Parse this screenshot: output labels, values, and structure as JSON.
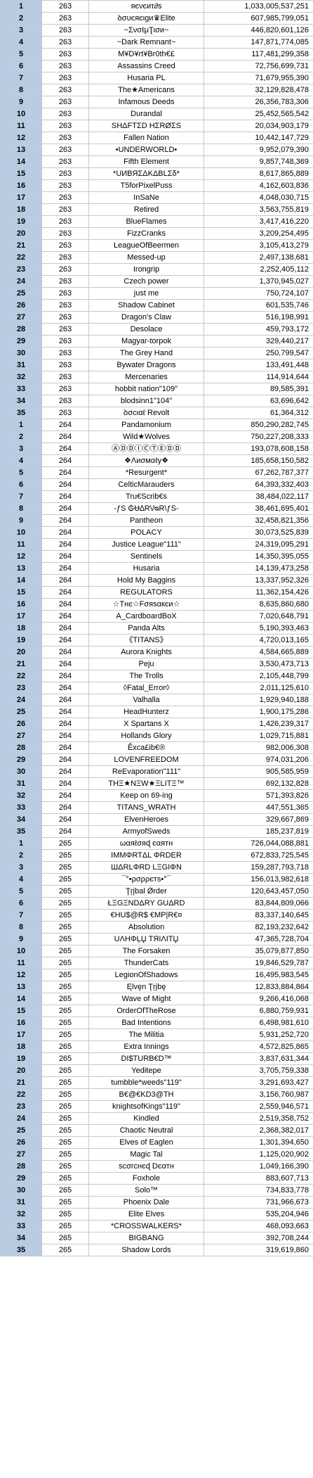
{
  "rows": [
    {
      "rank": "1",
      "server": "263",
      "name": "яєνєиτ∂ѕ",
      "score": "1,033,005,537,251"
    },
    {
      "rank": "2",
      "server": "263",
      "name": "ꝺσυєяєιgи♛Elite",
      "score": "607,985,799,051"
    },
    {
      "rank": "3",
      "server": "263",
      "name": "~ƩνσℓμƮισи~",
      "score": "446,820,601,126"
    },
    {
      "rank": "4",
      "server": "263",
      "name": "~Dark Remnant~",
      "score": "147,871,774,085"
    },
    {
      "rank": "5",
      "server": "263",
      "name": "M¥D¥rt¥Br0th€£",
      "score": "117,481,299,358"
    },
    {
      "rank": "6",
      "server": "263",
      "name": "Assassins Creed",
      "score": "72,756,699,731"
    },
    {
      "rank": "7",
      "server": "263",
      "name": "Husaria PL",
      "score": "71,679,955,390"
    },
    {
      "rank": "8",
      "server": "263",
      "name": "The★Americans",
      "score": "32,129,828,478"
    },
    {
      "rank": "9",
      "server": "263",
      "name": "Infamous Deeds",
      "score": "26,356,783,306"
    },
    {
      "rank": "10",
      "server": "263",
      "name": "Durandal",
      "score": "25,452,565,542"
    },
    {
      "rank": "11",
      "server": "263",
      "name": "SHΔFTΣD HΣRØΣS",
      "score": "20,034,903,179"
    },
    {
      "rank": "12",
      "server": "263",
      "name": "Fallen Nation",
      "score": "10,442,147,729"
    },
    {
      "rank": "13",
      "server": "263",
      "name": "•UNDERWORLD•",
      "score": "9,952,079,390"
    },
    {
      "rank": "14",
      "server": "263",
      "name": "Fifth Element",
      "score": "9,857,748,369"
    },
    {
      "rank": "15",
      "server": "263",
      "name": "*UИBЯΣΔKΔBLΣδ*",
      "score": "8,617,865,889"
    },
    {
      "rank": "16",
      "server": "263",
      "name": "T5forPixelPuss",
      "score": "4,162,603,836"
    },
    {
      "rank": "17",
      "server": "263",
      "name": "InSaNe",
      "score": "4,048,030,715"
    },
    {
      "rank": "18",
      "server": "263",
      "name": "Retired",
      "score": "3,563,755,819"
    },
    {
      "rank": "19",
      "server": "263",
      "name": "BlueFlames",
      "score": "3,417,416,220"
    },
    {
      "rank": "20",
      "server": "263",
      "name": "FizzCranks",
      "score": "3,209,254,495"
    },
    {
      "rank": "21",
      "server": "263",
      "name": "LeagueOfBeermen",
      "score": "3,105,413,279"
    },
    {
      "rank": "22",
      "server": "263",
      "name": "Messed-up",
      "score": "2,497,138,681"
    },
    {
      "rank": "23",
      "server": "263",
      "name": "Irongrip",
      "score": "2,252,405,112"
    },
    {
      "rank": "24",
      "server": "263",
      "name": "Czech power",
      "score": "1,370,945,027"
    },
    {
      "rank": "25",
      "server": "263",
      "name": "just me",
      "score": "750,724,107"
    },
    {
      "rank": "26",
      "server": "263",
      "name": "Shadow Cabinet",
      "score": "601,535,746"
    },
    {
      "rank": "27",
      "server": "263",
      "name": "Dragon's Claw",
      "score": "516,198,991"
    },
    {
      "rank": "28",
      "server": "263",
      "name": "Desolace",
      "score": "459,793,172"
    },
    {
      "rank": "29",
      "server": "263",
      "name": "Magyar-torpok",
      "score": "329,440,217"
    },
    {
      "rank": "30",
      "server": "263",
      "name": "The Grey Hand",
      "score": "250,799,547"
    },
    {
      "rank": "31",
      "server": "263",
      "name": "Bywater Dragons",
      "score": "133,491,448"
    },
    {
      "rank": "32",
      "server": "263",
      "name": "Mercenaries",
      "score": "114,914,644"
    },
    {
      "rank": "33",
      "server": "263",
      "name": "hobbit nation\"109\"",
      "score": "89,585,391"
    },
    {
      "rank": "34",
      "server": "263",
      "name": "blodsinn1\"104\"",
      "score": "63,696,642"
    },
    {
      "rank": "35",
      "server": "263",
      "name": "ꝺσcιαℓ Revolt",
      "score": "61,364,312"
    },
    {
      "rank": "1",
      "server": "264",
      "name": "Pandamonium",
      "score": "850,290,282,745"
    },
    {
      "rank": "2",
      "server": "264",
      "name": "Wild★Wolves",
      "score": "750,227,208,333"
    },
    {
      "rank": "3",
      "server": "264",
      "name": "ⒶⒹⒹⒾⒸⓉⒺⒹⒹ",
      "score": "193,078,608,158"
    },
    {
      "rank": "4",
      "server": "264",
      "name": "❖Λиσмαℓу❖",
      "score": "185,658,150,582"
    },
    {
      "rank": "5",
      "server": "264",
      "name": "*Resurgent*",
      "score": "67,262,787,377"
    },
    {
      "rank": "6",
      "server": "264",
      "name": "CelticMarauders",
      "score": "64,393,332,403"
    },
    {
      "rank": "7",
      "server": "264",
      "name": "Tru€Scrib€s",
      "score": "38,484,022,117"
    },
    {
      "rank": "8",
      "server": "264",
      "name": "-ƒS ₲Ʉ∆R\\/ᴓR\\ƒS-",
      "score": "38,461,695,401"
    },
    {
      "rank": "9",
      "server": "264",
      "name": "Pantheon",
      "score": "32,458,821,356"
    },
    {
      "rank": "10",
      "server": "264",
      "name": "POLACY",
      "score": "30,073,525,839"
    },
    {
      "rank": "11",
      "server": "264",
      "name": "Justice League\"111\"",
      "score": "24,319,095,291"
    },
    {
      "rank": "12",
      "server": "264",
      "name": "Sentinels",
      "score": "14,350,395,055"
    },
    {
      "rank": "13",
      "server": "264",
      "name": "Husaria",
      "score": "14,139,473,258"
    },
    {
      "rank": "14",
      "server": "264",
      "name": "Hold My Baggins",
      "score": "13,337,952,326"
    },
    {
      "rank": "15",
      "server": "264",
      "name": "REGULATORS",
      "score": "11,362,154,426"
    },
    {
      "rank": "16",
      "server": "264",
      "name": "☆Tнє☆Fσяѕαкєи☆",
      "score": "8,635,860,680"
    },
    {
      "rank": "17",
      "server": "264",
      "name": "A_CardboardBoX",
      "score": "7,020,648,791"
    },
    {
      "rank": "18",
      "server": "264",
      "name": "Panda Alts",
      "score": "5,190,393,463"
    },
    {
      "rank": "19",
      "server": "264",
      "name": "《TITANS》",
      "score": "4,720,013,165"
    },
    {
      "rank": "20",
      "server": "264",
      "name": "Aurora Knights",
      "score": "4,584,665,889"
    },
    {
      "rank": "21",
      "server": "264",
      "name": "Peju",
      "score": "3,530,473,713"
    },
    {
      "rank": "22",
      "server": "264",
      "name": "The Trolls",
      "score": "2,105,448,799"
    },
    {
      "rank": "23",
      "server": "264",
      "name": "◊Fatal_Error◊",
      "score": "2,011,125,610"
    },
    {
      "rank": "24",
      "server": "264",
      "name": "Valhalla",
      "score": "1,929,940,188"
    },
    {
      "rank": "25",
      "server": "264",
      "name": "HeadHunterz",
      "score": "1,900,175,286"
    },
    {
      "rank": "26",
      "server": "264",
      "name": "X Spartans X",
      "score": "1,426,239,317"
    },
    {
      "rank": "27",
      "server": "264",
      "name": "Hollands Glory",
      "score": "1,029,715,881"
    },
    {
      "rank": "28",
      "server": "264",
      "name": "Êxca£ib€®",
      "score": "982,006,308"
    },
    {
      "rank": "29",
      "server": "264",
      "name": "LOVENFREEDOM",
      "score": "974,031,206"
    },
    {
      "rank": "30",
      "server": "264",
      "name": "ReEvaporation\"111\"",
      "score": "905,585,959"
    },
    {
      "rank": "31",
      "server": "264",
      "name": "THΞ★NΞW★ΞLITΞ™",
      "score": "692,132,828"
    },
    {
      "rank": "32",
      "server": "264",
      "name": "Keep on 69-ing",
      "score": "571,393,826"
    },
    {
      "rank": "33",
      "server": "264",
      "name": "TITANS_WRATH",
      "score": "447,551,365"
    },
    {
      "rank": "34",
      "server": "264",
      "name": "ElvenHeroes",
      "score": "329,667,869"
    },
    {
      "rank": "35",
      "server": "264",
      "name": "ArmyofSweds",
      "score": "185,237,819"
    },
    {
      "rank": "1",
      "server": "265",
      "name": "ωαяℓσяɖ єαятн",
      "score": "726,044,088,881"
    },
    {
      "rank": "2",
      "server": "265",
      "name": "IMMΦRTΔL ΦRDER",
      "score": "672,833,725,545"
    },
    {
      "rank": "3",
      "server": "265",
      "name": "ШΔRLΦRD LΞGIΦN",
      "score": "159,287,793,718"
    },
    {
      "rank": "4",
      "server": "265",
      "name": "¯°•ρσρρєтѕ•°¯",
      "score": "156,013,982,618"
    },
    {
      "rank": "5",
      "server": "265",
      "name": "Ţŗįbal Ǿrder",
      "score": "120,643,457,050"
    },
    {
      "rank": "6",
      "server": "265",
      "name": "ŁΞGΞNDΔRY GUΔRD",
      "score": "83,844,809,066"
    },
    {
      "rank": "7",
      "server": "265",
      "name": "€HU$@R$ €MP|R€¤",
      "score": "83,337,140,645"
    },
    {
      "rank": "8",
      "server": "265",
      "name": "Absolution",
      "score": "82,193,232,642"
    },
    {
      "rank": "9",
      "server": "265",
      "name": "UΛHΦĻЏ TЯIΛITЏ",
      "score": "47,365,728,704"
    },
    {
      "rank": "10",
      "server": "265",
      "name": "The Forsaken",
      "score": "35,079,877,850"
    },
    {
      "rank": "11",
      "server": "265",
      "name": "ThunderCats",
      "score": "19,846,529,787"
    },
    {
      "rank": "12",
      "server": "265",
      "name": "LegionOfShadows",
      "score": "16,495,983,545"
    },
    {
      "rank": "13",
      "server": "265",
      "name": "Ęlvęn Ţŗįbę",
      "score": "12,833,884,864"
    },
    {
      "rank": "14",
      "server": "265",
      "name": "Wave of Might",
      "score": "9,266,416,068"
    },
    {
      "rank": "15",
      "server": "265",
      "name": "OrderOfTheRose",
      "score": "6,880,759,931"
    },
    {
      "rank": "16",
      "server": "265",
      "name": "Bad Intentions",
      "score": "6,498,981,610"
    },
    {
      "rank": "17",
      "server": "265",
      "name": "The Militia",
      "score": "5,931,252,720"
    },
    {
      "rank": "18",
      "server": "265",
      "name": "Extra Innings",
      "score": "4,572,825,865"
    },
    {
      "rank": "19",
      "server": "265",
      "name": "DI$TURB€D™",
      "score": "3,837,631,344"
    },
    {
      "rank": "20",
      "server": "265",
      "name": "Yeditepe",
      "score": "3,705,759,338"
    },
    {
      "rank": "21",
      "server": "265",
      "name": "tumbble*weeds\"119\"",
      "score": "3,291,693,427"
    },
    {
      "rank": "22",
      "server": "265",
      "name": "B€@€KD3@TH",
      "score": "3,156,760,987"
    },
    {
      "rank": "23",
      "server": "265",
      "name": "knightsofKings\"119\"",
      "score": "2,559,946,571"
    },
    {
      "rank": "24",
      "server": "265",
      "name": "Kindled",
      "score": "2,519,358,752"
    },
    {
      "rank": "25",
      "server": "265",
      "name": "Chaotic Neutral",
      "score": "2,368,382,017"
    },
    {
      "rank": "26",
      "server": "265",
      "name": "Elves of Eaglen",
      "score": "1,301,394,650"
    },
    {
      "rank": "27",
      "server": "265",
      "name": "Magic Tal",
      "score": "1,125,020,902"
    },
    {
      "rank": "28",
      "server": "265",
      "name": "ѕcσrcнєɖ Dєαтн",
      "score": "1,049,166,390"
    },
    {
      "rank": "29",
      "server": "265",
      "name": "Foxhole",
      "score": "883,607,713"
    },
    {
      "rank": "30",
      "server": "265",
      "name": "Solo™",
      "score": "734,833,778"
    },
    {
      "rank": "31",
      "server": "265",
      "name": "Phoenix Dale",
      "score": "731,966,673"
    },
    {
      "rank": "32",
      "server": "265",
      "name": "Elite Elves",
      "score": "535,204,946"
    },
    {
      "rank": "33",
      "server": "265",
      "name": "*CROSSWALKERS*",
      "score": "468,093,663"
    },
    {
      "rank": "34",
      "server": "265",
      "name": "BIGBANG",
      "score": "392,708,244"
    },
    {
      "rank": "35",
      "server": "265",
      "name": "Shadow Lords",
      "score": "319,619,860"
    }
  ]
}
